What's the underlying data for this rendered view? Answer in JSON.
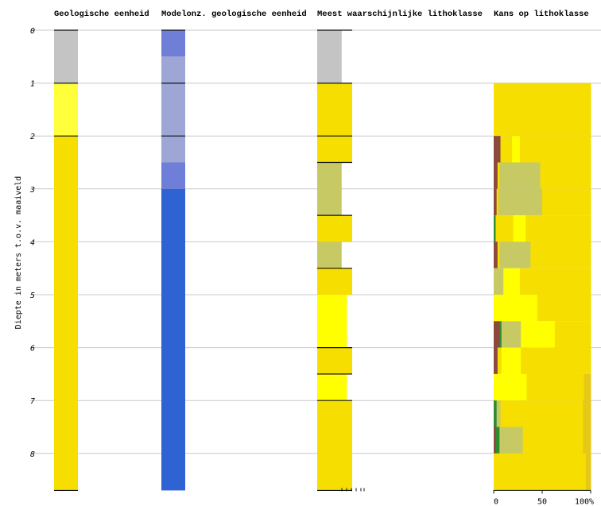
{
  "chart_data": {
    "type": "bar",
    "ylabel": "Diepte in meters t.o.v. maaiveld",
    "ylim": [
      0,
      8.7
    ],
    "yticks": [
      0,
      1,
      2,
      3,
      4,
      5,
      6,
      7,
      8
    ],
    "grid": true,
    "colors": {
      "grey": "#c4c4c4",
      "yellow": "#f5de00",
      "lightyellow": "#ffff3c",
      "brightyellow": "#ffff00",
      "olive": "#c7c964",
      "brown": "#8b4a3c",
      "green": "#2e8b2e",
      "darkyellow": "#e6c818",
      "blue1": "#6f7fd8",
      "blue2": "#9ea6d6",
      "blue3": "#2f62d2"
    },
    "columns": [
      {
        "title": "Geologische eenheid",
        "segments": [
          {
            "from": 0,
            "to": 1,
            "color": "grey"
          },
          {
            "from": 1,
            "to": 2,
            "color": "lightyellow"
          },
          {
            "from": 2,
            "to": 8.7,
            "color": "yellow"
          }
        ],
        "boundaries": [
          0,
          1,
          2,
          8.7
        ]
      },
      {
        "title": "Modelonz. geologische eenheid",
        "segments": [
          {
            "from": 0,
            "to": 0.5,
            "color": "blue1"
          },
          {
            "from": 0.5,
            "to": 2.5,
            "color": "blue2"
          },
          {
            "from": 2.5,
            "to": 3,
            "color": "blue1"
          },
          {
            "from": 3,
            "to": 8.7,
            "color": "blue3"
          }
        ],
        "boundaries": [
          0,
          1,
          2
        ]
      },
      {
        "title": "Meest waarschijnlijke lithoklasse",
        "segments": [
          {
            "from": 0,
            "to": 1,
            "color": "grey",
            "width": 0.7
          },
          {
            "from": 1,
            "to": 2.5,
            "color": "yellow",
            "width": 1
          },
          {
            "from": 2.5,
            "to": 3.5,
            "color": "olive",
            "width": 0.7
          },
          {
            "from": 3.5,
            "to": 4,
            "color": "yellow",
            "width": 1
          },
          {
            "from": 4,
            "to": 4.5,
            "color": "olive",
            "width": 0.7
          },
          {
            "from": 4.5,
            "to": 5,
            "color": "yellow",
            "width": 1
          },
          {
            "from": 5,
            "to": 6,
            "color": "brightyellow",
            "width": 0.85
          },
          {
            "from": 6,
            "to": 6.5,
            "color": "yellow",
            "width": 1
          },
          {
            "from": 6.5,
            "to": 7,
            "color": "brightyellow",
            "width": 0.85
          },
          {
            "from": 7,
            "to": 8.7,
            "color": "yellow",
            "width": 1
          }
        ],
        "boundaries": [
          0,
          1,
          2,
          2.5,
          3.5,
          4.5,
          6,
          6.5,
          7,
          8.7
        ]
      }
    ],
    "probability": {
      "title": "Kans op lithoklasse",
      "xticks": [
        "0",
        "50",
        "100%"
      ],
      "xlim": [
        0,
        100
      ],
      "rows": [
        {
          "from": 1,
          "to": 2,
          "parts": [
            [
              "yellow",
              100
            ]
          ]
        },
        {
          "from": 2,
          "to": 2.5,
          "parts": [
            [
              "brown",
              7
            ],
            [
              "yellow",
              12
            ],
            [
              "brightyellow",
              8
            ],
            [
              "yellow",
              73
            ]
          ]
        },
        {
          "from": 2.5,
          "to": 3,
          "parts": [
            [
              "brown",
              4
            ],
            [
              "yellow",
              2
            ],
            [
              "olive",
              42
            ],
            [
              "yellow",
              52
            ]
          ]
        },
        {
          "from": 3,
          "to": 3.5,
          "parts": [
            [
              "brown",
              3
            ],
            [
              "yellow",
              2
            ],
            [
              "olive",
              45
            ],
            [
              "yellow",
              50
            ]
          ]
        },
        {
          "from": 3.5,
          "to": 4,
          "parts": [
            [
              "green",
              2
            ],
            [
              "yellow",
              18
            ],
            [
              "brightyellow",
              13
            ],
            [
              "yellow",
              67
            ]
          ]
        },
        {
          "from": 4,
          "to": 4.5,
          "parts": [
            [
              "brown",
              4
            ],
            [
              "yellow",
              2
            ],
            [
              "olive",
              32
            ],
            [
              "yellow",
              62
            ]
          ]
        },
        {
          "from": 4.5,
          "to": 5,
          "parts": [
            [
              "olive",
              10
            ],
            [
              "brightyellow",
              17
            ],
            [
              "yellow",
              73
            ]
          ]
        },
        {
          "from": 5,
          "to": 5.5,
          "parts": [
            [
              "brightyellow",
              45
            ],
            [
              "yellow",
              55
            ]
          ]
        },
        {
          "from": 5.5,
          "to": 6,
          "parts": [
            [
              "brown",
              6
            ],
            [
              "green",
              2
            ],
            [
              "olive",
              20
            ],
            [
              "brightyellow",
              35
            ],
            [
              "yellow",
              37
            ]
          ]
        },
        {
          "from": 6,
          "to": 6.5,
          "parts": [
            [
              "brown",
              4
            ],
            [
              "yellow",
              4
            ],
            [
              "brightyellow",
              20
            ],
            [
              "yellow",
              72
            ]
          ]
        },
        {
          "from": 6.5,
          "to": 7,
          "parts": [
            [
              "brightyellow",
              34
            ],
            [
              "yellow",
              59
            ],
            [
              "darkyellow",
              7
            ]
          ]
        },
        {
          "from": 7,
          "to": 7.5,
          "parts": [
            [
              "green",
              3
            ],
            [
              "olive",
              4
            ],
            [
              "yellow",
              85
            ],
            [
              "darkyellow",
              8
            ]
          ]
        },
        {
          "from": 7.5,
          "to": 8,
          "parts": [
            [
              "brown",
              2
            ],
            [
              "green",
              4
            ],
            [
              "olive",
              24
            ],
            [
              "yellow",
              62
            ],
            [
              "darkyellow",
              8
            ]
          ]
        },
        {
          "from": 8,
          "to": 8.7,
          "parts": [
            [
              "yellow",
              95
            ],
            [
              "darkyellow",
              5
            ]
          ]
        }
      ]
    }
  }
}
